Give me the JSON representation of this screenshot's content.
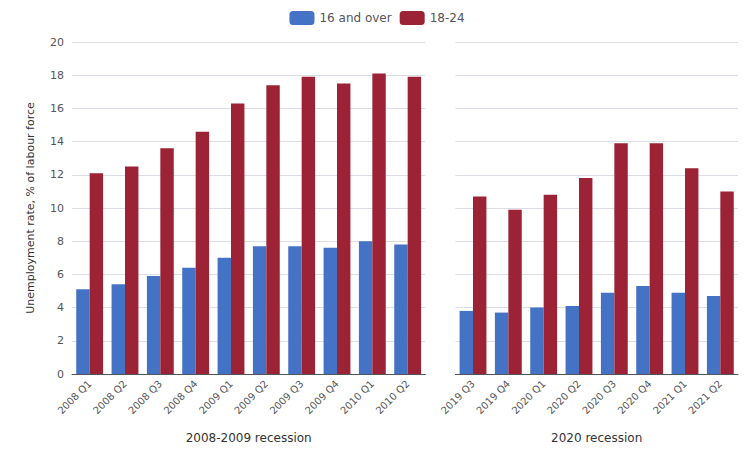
{
  "chart_data": [
    {
      "type": "bar",
      "categories": [
        "2008 Q1",
        "2008 Q2",
        "2008 Q3",
        "2008 Q4",
        "2009 Q1",
        "2009 Q2",
        "2009 Q3",
        "2009 Q4",
        "2010 Q1",
        "2010 Q2"
      ],
      "series": [
        {
          "name": "16 and over",
          "color": "#4472C4",
          "values": [
            5.1,
            5.4,
            5.9,
            6.4,
            7.0,
            7.7,
            7.7,
            7.6,
            8.0,
            7.8
          ]
        },
        {
          "name": "18-24",
          "color": "#9B2335",
          "values": [
            12.1,
            12.5,
            13.6,
            14.6,
            16.3,
            17.4,
            17.9,
            17.5,
            18.1,
            17.9
          ]
        }
      ],
      "xlabel": "2008-2009 recession",
      "ylabel": "Unemployment rate, % of labour force",
      "ylim": [
        0,
        20
      ],
      "yticks": [
        0,
        2,
        4,
        6,
        8,
        10,
        12,
        14,
        16,
        18,
        20
      ],
      "grid": true,
      "legend": "top"
    },
    {
      "type": "bar",
      "categories": [
        "2019 Q3",
        "2019 Q4",
        "2020 Q1",
        "2020 Q2",
        "2020 Q3",
        "2020 Q4",
        "2021 Q1",
        "2021 Q2"
      ],
      "series": [
        {
          "name": "16 and over",
          "color": "#4472C4",
          "values": [
            3.8,
            3.7,
            4.0,
            4.1,
            4.9,
            5.3,
            4.9,
            4.7
          ]
        },
        {
          "name": "18-24",
          "color": "#9B2335",
          "values": [
            10.7,
            9.9,
            10.8,
            11.8,
            13.9,
            13.9,
            12.4,
            11.0
          ]
        }
      ],
      "xlabel": "2020 recession",
      "ylim": [
        0,
        20
      ],
      "yticks": [
        0,
        2,
        4,
        6,
        8,
        10,
        12,
        14,
        16,
        18,
        20
      ],
      "grid": true,
      "tick_labels": "x"
    }
  ]
}
